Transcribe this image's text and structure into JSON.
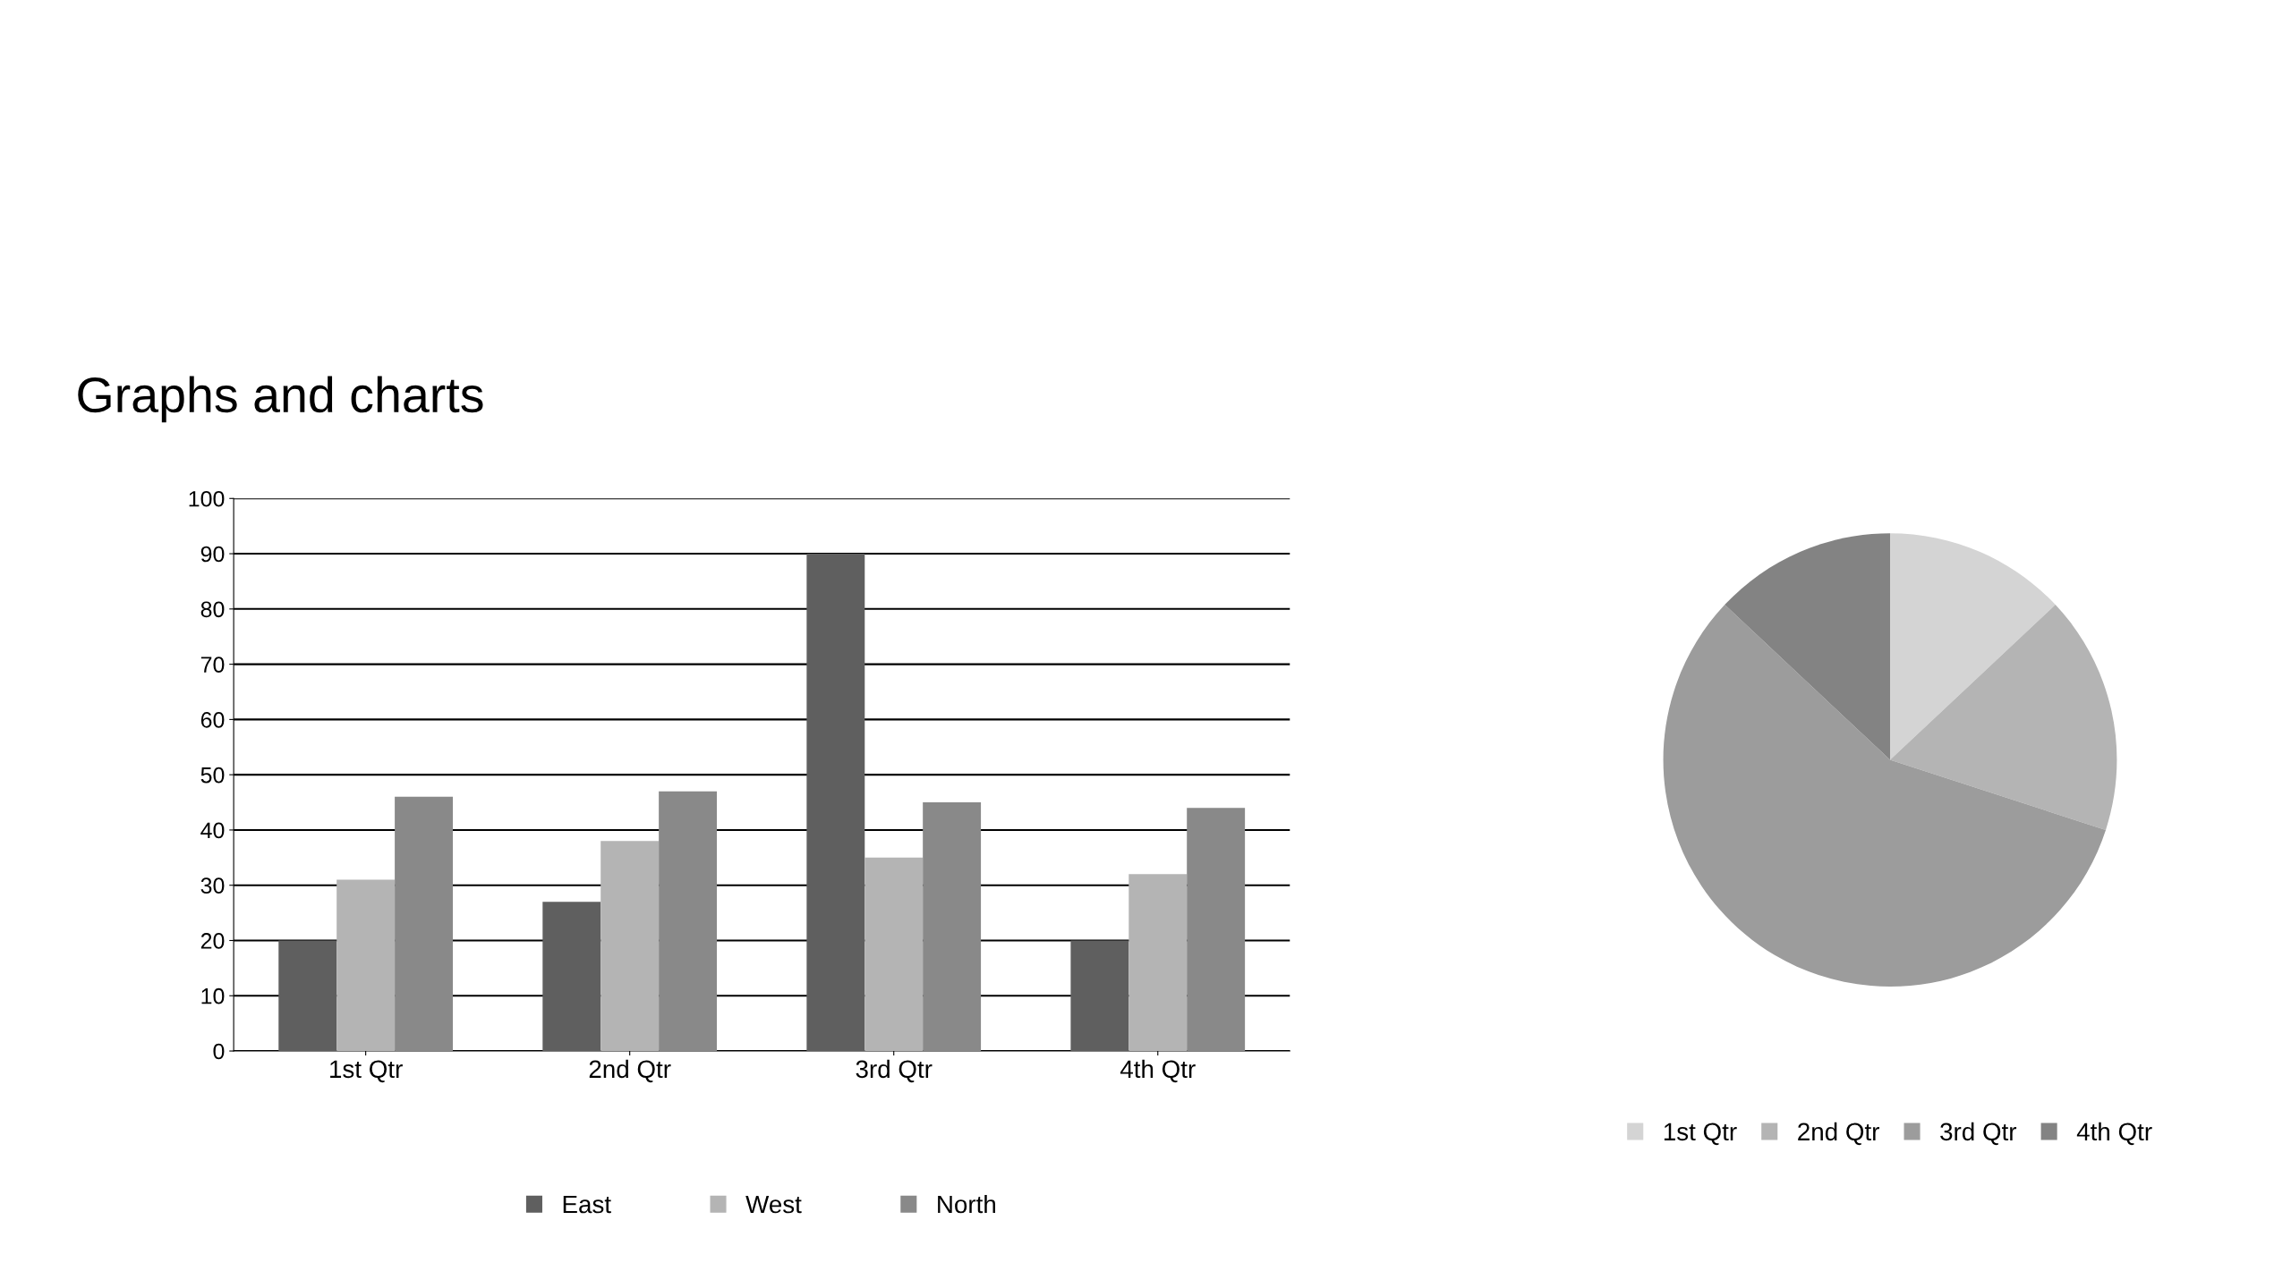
{
  "chart_data": [
    {
      "type": "bar",
      "title": "Graphs and charts",
      "categories": [
        "1st Qtr",
        "2nd Qtr",
        "3rd Qtr",
        "4th Qtr"
      ],
      "series": [
        {
          "name": "East",
          "color": "#5f5f5f",
          "values": [
            20,
            27,
            90,
            20
          ]
        },
        {
          "name": "West",
          "color": "#b4b4b4",
          "values": [
            31,
            38,
            35,
            32
          ]
        },
        {
          "name": "North",
          "color": "#898989",
          "values": [
            46,
            47,
            45,
            44
          ]
        }
      ],
      "ylim": [
        0,
        100
      ],
      "yticks": [
        0,
        10,
        20,
        30,
        40,
        50,
        60,
        70,
        80,
        90,
        100
      ],
      "grid": "y",
      "legend": "bottom"
    },
    {
      "type": "pie",
      "categories": [
        "1st Qtr",
        "2nd Qtr",
        "3rd Qtr",
        "4th Qtr"
      ],
      "values": [
        13,
        17,
        57,
        13
      ],
      "colors": [
        "#d4d4d4",
        "#b4b4b4",
        "#9c9c9c",
        "#838383"
      ],
      "legend": "bottom"
    }
  ]
}
